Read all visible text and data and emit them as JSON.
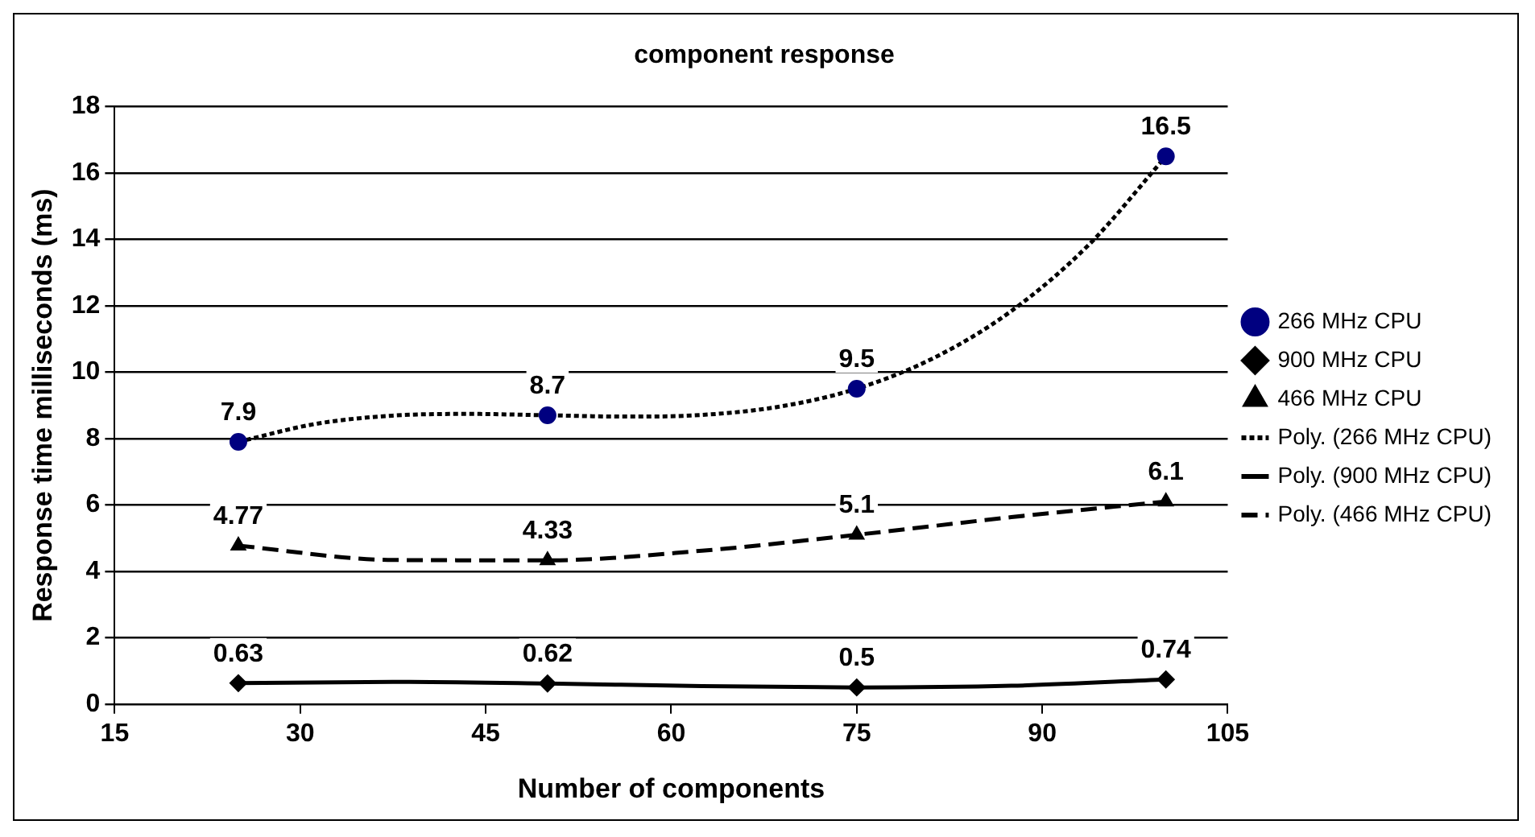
{
  "chart_data": {
    "type": "scatter",
    "title": "component response",
    "xlabel": "Number of components",
    "ylabel": "Response time milliseconds (ms)",
    "xlim": [
      15,
      105
    ],
    "xticks": [
      15,
      30,
      45,
      60,
      75,
      90,
      105
    ],
    "ylim": [
      0,
      18
    ],
    "yticks": [
      0,
      2,
      4,
      6,
      8,
      10,
      12,
      14,
      16,
      18
    ],
    "grid": "y",
    "legend": "right",
    "series": [
      {
        "name": "266 MHz CPU",
        "marker": "circle",
        "color": "#000080",
        "x": [
          25,
          50,
          75,
          100
        ],
        "values": [
          7.9,
          8.7,
          9.5,
          16.5
        ],
        "value_labels": [
          "7.9",
          "8.7",
          "9.5",
          "16.5"
        ]
      },
      {
        "name": "900 MHz CPU",
        "marker": "diamond",
        "color": "#000000",
        "x": [
          25,
          50,
          75,
          100
        ],
        "values": [
          0.63,
          0.62,
          0.5,
          0.74
        ],
        "value_labels": [
          "0.63",
          "0.62",
          "0.5",
          "0.74"
        ]
      },
      {
        "name": "466 MHz CPU",
        "marker": "triangle",
        "color": "#000000",
        "x": [
          25,
          50,
          75,
          100
        ],
        "values": [
          4.77,
          4.33,
          5.1,
          6.1
        ],
        "value_labels": [
          "4.77",
          "4.33",
          "5.1",
          "6.1"
        ]
      },
      {
        "name": "Poly. (266 MHz CPU)",
        "type": "line",
        "marker": "none",
        "line_style": "dotted",
        "color": "#000000",
        "x": [
          25,
          31.25,
          37.5,
          43.75,
          50,
          56.25,
          62.5,
          68.75,
          75,
          81.25,
          87.5,
          93.75,
          100
        ],
        "values": [
          7.9,
          8.44,
          8.69,
          8.74,
          8.7,
          8.66,
          8.71,
          8.96,
          9.5,
          10.43,
          11.84,
          13.83,
          16.5
        ]
      },
      {
        "name": "Poly. (900 MHz CPU)",
        "type": "line",
        "marker": "none",
        "line_style": "solid",
        "color": "#000000",
        "x": [
          25,
          37.5,
          50,
          62.5,
          75,
          87.5,
          100
        ],
        "values": [
          0.63,
          0.67,
          0.62,
          0.54,
          0.5,
          0.55,
          0.74
        ]
      },
      {
        "name": "Poly. (466 MHz CPU)",
        "type": "line",
        "marker": "none",
        "line_style": "dashed",
        "color": "#000000",
        "x": [
          25,
          37.5,
          50,
          62.5,
          75,
          87.5,
          100
        ],
        "values": [
          4.77,
          4.34,
          4.33,
          4.62,
          5.1,
          5.63,
          6.1
        ]
      }
    ]
  }
}
